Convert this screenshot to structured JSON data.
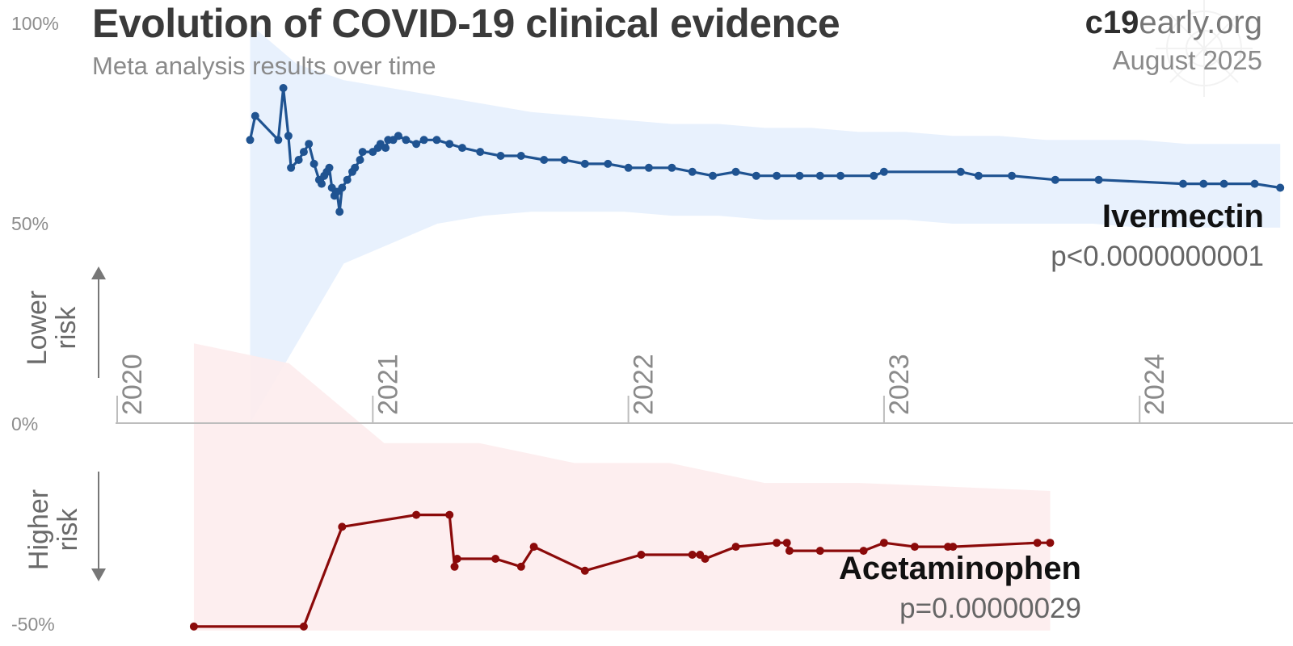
{
  "header": {
    "title": "Evolution of COVID-19 clinical evidence",
    "subtitle": "Meta analysis results over time",
    "brand_bold": "c19",
    "brand_rest": "early.org",
    "date": "August 2025"
  },
  "axis_labels": {
    "lower_risk_line1": "Lower",
    "lower_risk_line2": "risk",
    "higher_risk_line1": "Higher",
    "higher_risk_line2": "risk"
  },
  "colors": {
    "ivermectin_line": "#1f5391",
    "ivermectin_band": "#e6f0fd",
    "acetaminophen_line": "#8b0a0a",
    "acetaminophen_band": "#fdeced",
    "axis": "#bdbdbd",
    "text": "#3a3a3a"
  },
  "chart_data": {
    "type": "line",
    "title": "Evolution of COVID-19 clinical evidence",
    "subtitle": "Meta analysis results over time",
    "x_ticks": [
      "2020",
      "2021",
      "2022",
      "2023",
      "2024"
    ],
    "y_ticks": [
      "100%",
      "50%",
      "0%",
      "-50%"
    ],
    "ylim": [
      -52,
      100
    ],
    "xlim": [
      2020.0,
      2024.6
    ],
    "grid": false,
    "series": [
      {
        "name": "Ivermectin",
        "p_value": "p<0.0000000001",
        "x": [
          2020.52,
          2020.54,
          2020.63,
          2020.65,
          2020.67,
          2020.68,
          2020.71,
          2020.73,
          2020.75,
          2020.77,
          2020.79,
          2020.8,
          2020.81,
          2020.82,
          2020.83,
          2020.84,
          2020.85,
          2020.86,
          2020.87,
          2020.88,
          2020.9,
          2020.92,
          2020.93,
          2020.95,
          2020.96,
          2021.0,
          2021.02,
          2021.03,
          2021.05,
          2021.06,
          2021.08,
          2021.1,
          2021.13,
          2021.17,
          2021.2,
          2021.25,
          2021.3,
          2021.35,
          2021.42,
          2021.5,
          2021.58,
          2021.67,
          2021.75,
          2021.83,
          2021.92,
          2022.0,
          2022.08,
          2022.17,
          2022.25,
          2022.33,
          2022.42,
          2022.5,
          2022.58,
          2022.67,
          2022.75,
          2022.83,
          2022.96,
          2023.0,
          2023.3,
          2023.37,
          2023.5,
          2023.67,
          2023.84,
          2024.17,
          2024.25,
          2024.33,
          2024.45,
          2024.55
        ],
        "y": [
          71,
          77,
          71,
          84,
          72,
          64,
          66,
          68,
          70,
          65,
          61,
          60,
          62,
          63,
          64,
          59,
          57,
          58,
          53,
          59,
          61,
          63,
          64,
          66,
          68,
          68,
          69,
          70,
          69,
          71,
          71,
          72,
          71,
          70,
          71,
          71,
          70,
          69,
          68,
          67,
          67,
          66,
          66,
          65,
          65,
          64,
          64,
          64,
          63,
          62,
          63,
          62,
          62,
          62,
          62,
          62,
          62,
          63,
          63,
          62,
          62,
          61,
          61,
          60,
          60,
          60,
          60,
          59
        ],
        "ci_low": [
          0,
          20,
          40,
          45,
          50,
          52,
          53,
          53,
          53,
          52,
          52,
          51,
          51,
          51,
          51,
          50,
          50,
          50,
          50,
          49,
          49,
          49,
          49
        ],
        "ci_high": [
          100,
          90,
          86,
          84,
          82,
          80,
          78,
          77,
          76,
          75,
          75,
          74,
          74,
          73,
          73,
          72,
          72,
          71,
          71,
          71,
          70,
          70,
          70
        ]
      },
      {
        "name": "Acetaminophen",
        "p_value": "p=0.00000029",
        "x": [
          2020.3,
          2020.73,
          2020.88,
          2021.17,
          2021.3,
          2021.32,
          2021.33,
          2021.48,
          2021.58,
          2021.63,
          2021.83,
          2022.05,
          2022.25,
          2022.28,
          2022.3,
          2022.42,
          2022.58,
          2022.62,
          2022.63,
          2022.75,
          2022.92,
          2023.0,
          2023.12,
          2023.25,
          2023.27,
          2023.6,
          2023.65
        ],
        "y": [
          -51,
          -51,
          -26,
          -23,
          -23,
          -36,
          -34,
          -34,
          -36,
          -31,
          -37,
          -33,
          -33,
          -33,
          -34,
          -31,
          -30,
          -30,
          -32,
          -32,
          -32,
          -30,
          -31,
          -31,
          -31,
          -30,
          -30
        ],
        "ci_low": [
          -52,
          -52,
          -52,
          -52,
          -52,
          -52,
          -52,
          -52,
          -52,
          -52
        ],
        "ci_high": [
          20,
          15,
          -5,
          -5,
          -10,
          -10,
          -15,
          -15,
          -16,
          -17
        ]
      }
    ]
  }
}
